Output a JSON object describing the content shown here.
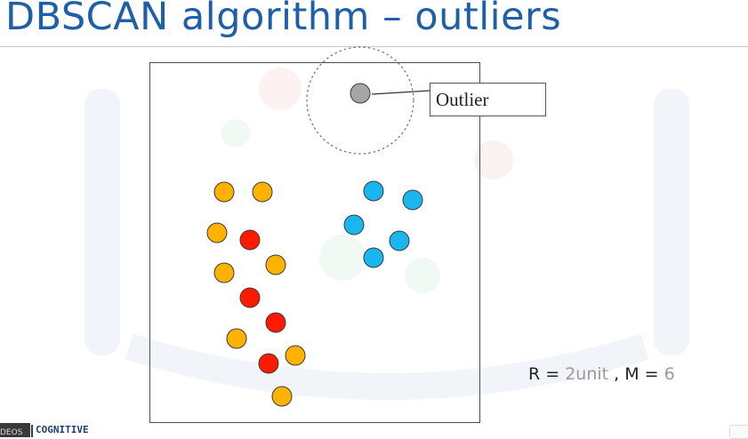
{
  "slide": {
    "title": "DBSCAN algorithm – outliers",
    "callout_label": "Outlier",
    "params": {
      "r_label": "R = ",
      "r_value": "2unit",
      "separator": " , ",
      "m_label": "M = ",
      "m_value": "6"
    }
  },
  "brand": {
    "video_tag": "DEOS",
    "name": "COGNITIVE"
  },
  "colors": {
    "title": "#1f5fa8",
    "yellow_point": "#ffb300",
    "red_point": "#ff1a00",
    "blue_point": "#19b6f0",
    "outlier_point": "#a6a6a6",
    "point_stroke": "#3b3b3b"
  },
  "points": [
    {
      "cluster": "yellow",
      "kind": "border"
    },
    {
      "cluster": "yellow",
      "kind": "border"
    },
    {
      "cluster": "yellow",
      "kind": "border"
    },
    {
      "cluster": "red",
      "kind": "core"
    },
    {
      "cluster": "yellow",
      "kind": "border"
    },
    {
      "cluster": "yellow",
      "kind": "border"
    },
    {
      "cluster": "red",
      "kind": "core"
    },
    {
      "cluster": "red",
      "kind": "core"
    },
    {
      "cluster": "yellow",
      "kind": "border"
    },
    {
      "cluster": "red",
      "kind": "core"
    },
    {
      "cluster": "yellow",
      "kind": "border"
    },
    {
      "cluster": "yellow",
      "kind": "border"
    },
    {
      "cluster": "blue",
      "kind": "cluster"
    },
    {
      "cluster": "blue",
      "kind": "cluster"
    },
    {
      "cluster": "blue",
      "kind": "cluster"
    },
    {
      "cluster": "blue",
      "kind": "cluster"
    },
    {
      "cluster": "blue",
      "kind": "cluster"
    },
    {
      "cluster": "outlier",
      "kind": "outlier"
    }
  ]
}
